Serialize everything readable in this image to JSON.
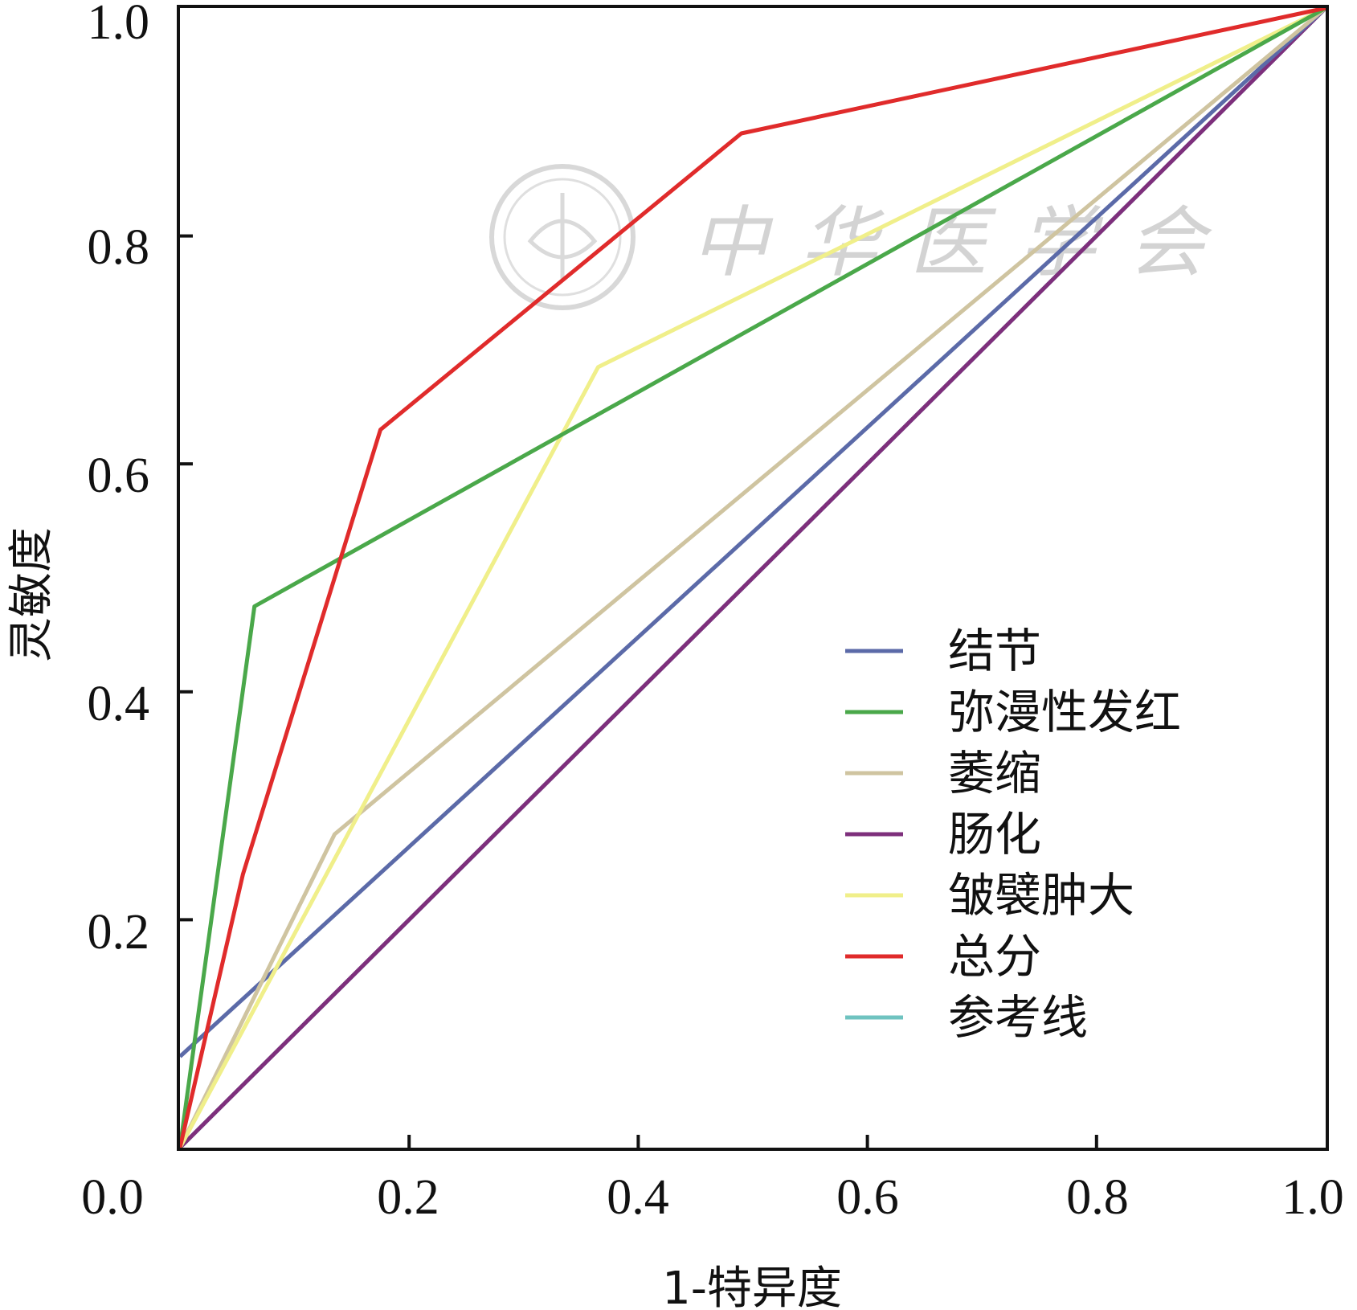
{
  "chart_data": {
    "type": "line",
    "xlabel": "1-特异度",
    "ylabel": "灵敏度",
    "xlim": [
      0,
      1
    ],
    "ylim": [
      0,
      1
    ],
    "x_ticks": [
      "0.0",
      "0.2",
      "0.4",
      "0.6",
      "0.8",
      "1.0"
    ],
    "y_ticks": [
      "0.2",
      "0.4",
      "0.6",
      "0.8",
      "1.0"
    ],
    "grid": false,
    "legend_position": "bottom-right",
    "series": [
      {
        "name": "结节",
        "color": "#5b6aa8",
        "points": [
          [
            0,
            0.08
          ],
          [
            1,
            1
          ]
        ]
      },
      {
        "name": "弥漫性发红",
        "color": "#4aa84a",
        "points": [
          [
            0,
            0
          ],
          [
            0.065,
            0.475
          ],
          [
            1,
            1
          ]
        ]
      },
      {
        "name": "萎缩",
        "color": "#cfc4a0",
        "points": [
          [
            0,
            0
          ],
          [
            0.135,
            0.275
          ],
          [
            1,
            1
          ]
        ]
      },
      {
        "name": "肠化",
        "color": "#7e2f7c",
        "points": [
          [
            0,
            0
          ],
          [
            0.02,
            0.02
          ],
          [
            1,
            1
          ]
        ]
      },
      {
        "name": "皱襞肿大",
        "color": "#f0ef8a",
        "points": [
          [
            0,
            0
          ],
          [
            0.365,
            0.685
          ],
          [
            1,
            1
          ]
        ]
      },
      {
        "name": "总分",
        "color": "#e02b2b",
        "points": [
          [
            0,
            0
          ],
          [
            0.055,
            0.24
          ],
          [
            0.175,
            0.63
          ],
          [
            0.49,
            0.89
          ],
          [
            1,
            1
          ]
        ]
      },
      {
        "name": "参考线",
        "color": "#6fc3c0",
        "points": [
          [
            0,
            0
          ],
          [
            1,
            1
          ]
        ]
      }
    ]
  },
  "watermark": {
    "text": "中华医学会"
  }
}
